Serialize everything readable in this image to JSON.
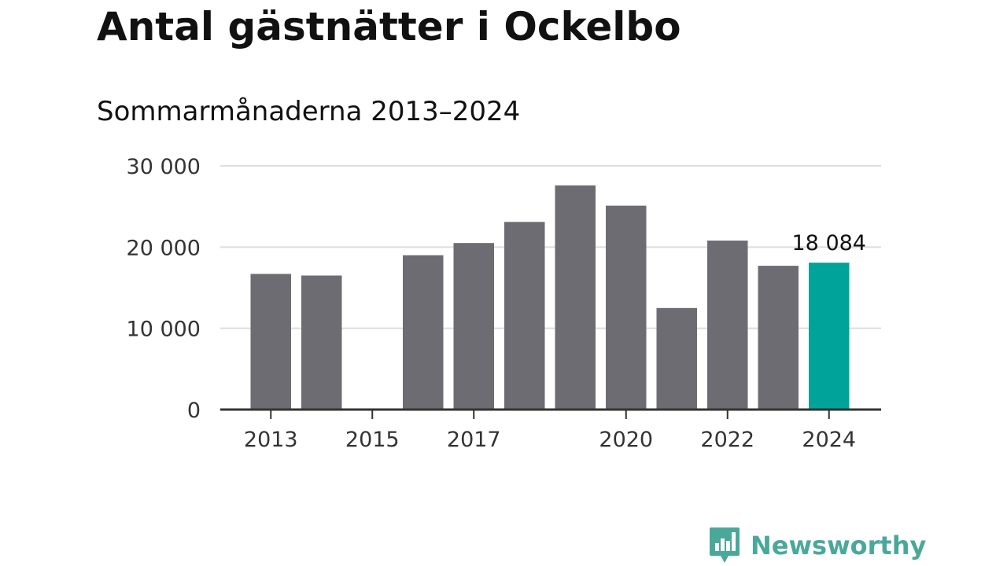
{
  "title": "Antal gästnätter i Ockelbo",
  "subtitle": "Sommarmånaderna 2013–2024",
  "brand": {
    "name": "Newsworthy",
    "logo_icon": "bar-chart-speech-bubble-icon",
    "color": "#4aa89b"
  },
  "colors": {
    "bar": "#6d6c72",
    "highlight": "#00a39a",
    "grid": "#dddddd",
    "axis": "#333333"
  },
  "chart_data": {
    "type": "bar",
    "title": "Antal gästnätter i Ockelbo",
    "subtitle": "Sommarmånaderna 2013–2024",
    "xlabel": "",
    "ylabel": "",
    "categories": [
      "2013",
      "2014",
      "2015",
      "2016",
      "2017",
      "2018",
      "2019",
      "2020",
      "2021",
      "2022",
      "2023",
      "2024"
    ],
    "values": [
      16700,
      16500,
      null,
      19000,
      20500,
      23100,
      27600,
      25100,
      12500,
      20800,
      17700,
      18084
    ],
    "highlight_index": 11,
    "highlight_label": "18 084",
    "ylim": [
      0,
      30000
    ],
    "yticks": [
      0,
      10000,
      20000,
      30000
    ],
    "ytick_labels": [
      "0",
      "10 000",
      "20 000",
      "30 000"
    ],
    "xtick_labels": [
      "2013",
      "2015",
      "2017",
      "2020",
      "2022",
      "2024"
    ],
    "grid": true,
    "legend": "none"
  }
}
